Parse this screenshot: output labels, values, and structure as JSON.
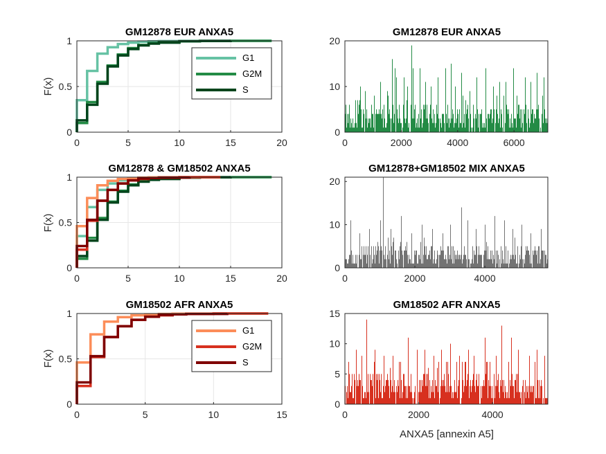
{
  "chart_data": [
    {
      "panel": "top-left",
      "type": "line",
      "step": true,
      "title": "GM12878 EUR ANXA5",
      "xlabel": "",
      "ylabel": "F(x)",
      "xlim": [
        0,
        20
      ],
      "ylim": [
        0,
        1
      ],
      "xticks": [
        0,
        5,
        10,
        15,
        20
      ],
      "yticks": [
        0,
        0.5,
        1
      ],
      "grid": true,
      "legend_position": "top-right",
      "series": [
        {
          "name": "G1",
          "color": "#66c2a4",
          "x": [
            0,
            1,
            2,
            3,
            4,
            5,
            6,
            7,
            8,
            10,
            12,
            15,
            19
          ],
          "y": [
            0.35,
            0.67,
            0.86,
            0.93,
            0.965,
            0.98,
            0.99,
            0.995,
            0.997,
            0.999,
            0.9995,
            1,
            1
          ]
        },
        {
          "name": "G2M",
          "color": "#238b45",
          "x": [
            0,
            1,
            2,
            3,
            4,
            5,
            6,
            7,
            8,
            10,
            12,
            15,
            19
          ],
          "y": [
            0.1,
            0.33,
            0.55,
            0.73,
            0.85,
            0.92,
            0.955,
            0.975,
            0.985,
            0.995,
            0.999,
            1,
            1
          ]
        },
        {
          "name": "S",
          "color": "#00441b",
          "x": [
            0,
            1,
            2,
            3,
            4,
            5,
            6,
            7,
            8,
            10,
            12,
            15
          ],
          "y": [
            0.13,
            0.3,
            0.53,
            0.72,
            0.84,
            0.91,
            0.95,
            0.97,
            0.98,
            0.995,
            0.999,
            1
          ]
        }
      ]
    },
    {
      "panel": "top-right",
      "type": "bar",
      "title": "GM12878 EUR ANXA5",
      "xlabel": "",
      "ylabel": "",
      "xlim": [
        0,
        7200
      ],
      "ylim": [
        0,
        20
      ],
      "xticks": [
        0,
        2000,
        4000,
        6000
      ],
      "yticks": [
        0,
        10,
        20
      ],
      "color": "#238b45",
      "n": 7200,
      "base_max": 5,
      "spikes": [
        [
          550,
          10
        ],
        [
          720,
          9
        ],
        [
          1250,
          11
        ],
        [
          1500,
          9
        ],
        [
          1680,
          16
        ],
        [
          1760,
          14
        ],
        [
          1830,
          12
        ],
        [
          2080,
          12
        ],
        [
          2200,
          10
        ],
        [
          2360,
          19
        ],
        [
          2420,
          14
        ],
        [
          2650,
          14
        ],
        [
          2850,
          11
        ],
        [
          3050,
          10
        ],
        [
          3300,
          12
        ],
        [
          3560,
          14
        ],
        [
          3750,
          15
        ],
        [
          3900,
          10
        ],
        [
          4120,
          13
        ],
        [
          4420,
          9
        ],
        [
          4660,
          12
        ],
        [
          5000,
          14
        ],
        [
          5250,
          10
        ],
        [
          5480,
          11
        ],
        [
          5700,
          11
        ],
        [
          5980,
          14
        ],
        [
          6400,
          12
        ],
        [
          6580,
          11
        ],
        [
          6800,
          13
        ],
        [
          7050,
          12
        ]
      ]
    },
    {
      "panel": "middle-left",
      "type": "line",
      "step": true,
      "title": "GM12878 & GM18502 ANXA5",
      "xlabel": "",
      "ylabel": "F(x)",
      "xlim": [
        0,
        20
      ],
      "ylim": [
        0,
        1
      ],
      "xticks": [
        0,
        5,
        10,
        15,
        20
      ],
      "yticks": [
        0,
        0.5,
        1
      ],
      "grid": true,
      "series": [
        {
          "name": "G1",
          "color": "#66c2a4",
          "x": [
            0,
            1,
            2,
            3,
            4,
            5,
            6,
            7,
            8,
            10,
            12,
            15,
            19
          ],
          "y": [
            0.35,
            0.67,
            0.86,
            0.93,
            0.965,
            0.98,
            0.99,
            0.995,
            0.997,
            0.999,
            0.9995,
            1,
            1
          ]
        },
        {
          "name": "G2M",
          "color": "#238b45",
          "x": [
            0,
            1,
            2,
            3,
            4,
            5,
            6,
            7,
            8,
            10,
            12,
            15,
            19
          ],
          "y": [
            0.1,
            0.33,
            0.55,
            0.73,
            0.85,
            0.92,
            0.955,
            0.975,
            0.985,
            0.995,
            0.999,
            1,
            1
          ]
        },
        {
          "name": "S",
          "color": "#00441b",
          "x": [
            0,
            1,
            2,
            3,
            4,
            5,
            6,
            7,
            8,
            10,
            12,
            15
          ],
          "y": [
            0.13,
            0.3,
            0.53,
            0.72,
            0.84,
            0.91,
            0.95,
            0.97,
            0.98,
            0.995,
            0.999,
            1
          ]
        },
        {
          "name": "G1",
          "color": "#fc8d59",
          "x": [
            0,
            1,
            2,
            3,
            4,
            5,
            6,
            7,
            8,
            10,
            14
          ],
          "y": [
            0.46,
            0.77,
            0.91,
            0.96,
            0.98,
            0.99,
            0.995,
            0.998,
            0.999,
            1,
            1
          ]
        },
        {
          "name": "G2M",
          "color": "#d7301f",
          "x": [
            0,
            1,
            2,
            3,
            4,
            5,
            6,
            7,
            8,
            10,
            14
          ],
          "y": [
            0.2,
            0.52,
            0.74,
            0.86,
            0.93,
            0.965,
            0.98,
            0.99,
            0.995,
            1,
            1
          ]
        },
        {
          "name": "S",
          "color": "#7f0000",
          "x": [
            0,
            1,
            2,
            3,
            4,
            5,
            6,
            7,
            8,
            11
          ],
          "y": [
            0.24,
            0.53,
            0.74,
            0.86,
            0.93,
            0.965,
            0.985,
            0.99,
            0.995,
            1
          ]
        }
      ]
    },
    {
      "panel": "middle-right",
      "type": "bar",
      "title": "GM12878+GM18502 MIX ANXA5",
      "xlabel": "",
      "ylabel": "",
      "xlim": [
        0,
        5800
      ],
      "ylim": [
        0,
        21
      ],
      "xticks": [
        0,
        2000,
        4000
      ],
      "yticks": [
        0,
        10,
        20
      ],
      "color": "#737373",
      "n": 5800,
      "base_max": 4,
      "spikes": [
        [
          150,
          11
        ],
        [
          420,
          8
        ],
        [
          700,
          9
        ],
        [
          1000,
          11
        ],
        [
          1080,
          21
        ],
        [
          1300,
          9
        ],
        [
          1600,
          12
        ],
        [
          1900,
          8
        ],
        [
          2200,
          10
        ],
        [
          2500,
          9
        ],
        [
          2800,
          8
        ],
        [
          3000,
          10
        ],
        [
          3320,
          14
        ],
        [
          3500,
          11
        ],
        [
          3750,
          9
        ],
        [
          4000,
          10
        ],
        [
          4280,
          12
        ],
        [
          4550,
          11
        ],
        [
          4800,
          9
        ],
        [
          5050,
          10
        ],
        [
          5300,
          8
        ],
        [
          5600,
          9
        ]
      ]
    },
    {
      "panel": "bottom-left",
      "type": "line",
      "step": true,
      "title": "GM18502 AFR ANXA5",
      "xlabel": "",
      "ylabel": "F(x)",
      "xlim": [
        0,
        15
      ],
      "ylim": [
        0,
        1
      ],
      "xticks": [
        0,
        5,
        10,
        15
      ],
      "yticks": [
        0,
        0.5,
        1
      ],
      "grid": true,
      "legend_position": "top-right",
      "series": [
        {
          "name": "G1",
          "color": "#fc8d59",
          "x": [
            0,
            1,
            2,
            3,
            4,
            5,
            6,
            7,
            8,
            10,
            14
          ],
          "y": [
            0.46,
            0.77,
            0.91,
            0.96,
            0.98,
            0.99,
            0.995,
            0.998,
            0.999,
            1,
            1
          ]
        },
        {
          "name": "G2M",
          "color": "#d7301f",
          "x": [
            0,
            1,
            2,
            3,
            4,
            5,
            6,
            7,
            8,
            10,
            14
          ],
          "y": [
            0.2,
            0.52,
            0.74,
            0.86,
            0.93,
            0.965,
            0.98,
            0.99,
            0.995,
            1,
            1
          ]
        },
        {
          "name": "S",
          "color": "#7f0000",
          "x": [
            0,
            1,
            2,
            3,
            4,
            5,
            6,
            7,
            8,
            11
          ],
          "y": [
            0.24,
            0.53,
            0.74,
            0.86,
            0.93,
            0.965,
            0.985,
            0.99,
            0.995,
            1
          ]
        }
      ]
    },
    {
      "panel": "bottom-right",
      "type": "bar",
      "title": "GM18502 AFR ANXA5",
      "xlabel": "ANXA5 [annexin A5]",
      "ylabel": "",
      "xlim": [
        0,
        5500
      ],
      "ylim": [
        0,
        15
      ],
      "xticks": [
        0,
        2000,
        4000
      ],
      "yticks": [
        0,
        5,
        10,
        15
      ],
      "color": "#d7301f",
      "n": 5500,
      "base_max": 4,
      "spikes": [
        [
          100,
          7
        ],
        [
          300,
          9
        ],
        [
          450,
          8
        ],
        [
          590,
          14
        ],
        [
          800,
          9
        ],
        [
          1050,
          8
        ],
        [
          1300,
          8
        ],
        [
          1500,
          7
        ],
        [
          1700,
          11
        ],
        [
          1950,
          9
        ],
        [
          2150,
          9
        ],
        [
          2400,
          8
        ],
        [
          2600,
          9
        ],
        [
          2850,
          10
        ],
        [
          3100,
          8
        ],
        [
          3350,
          9
        ],
        [
          3500,
          8
        ],
        [
          3800,
          11
        ],
        [
          4100,
          8
        ],
        [
          4250,
          13
        ],
        [
          4500,
          11
        ],
        [
          4700,
          9
        ],
        [
          5000,
          8
        ],
        [
          5200,
          9
        ],
        [
          5400,
          8
        ]
      ]
    }
  ]
}
